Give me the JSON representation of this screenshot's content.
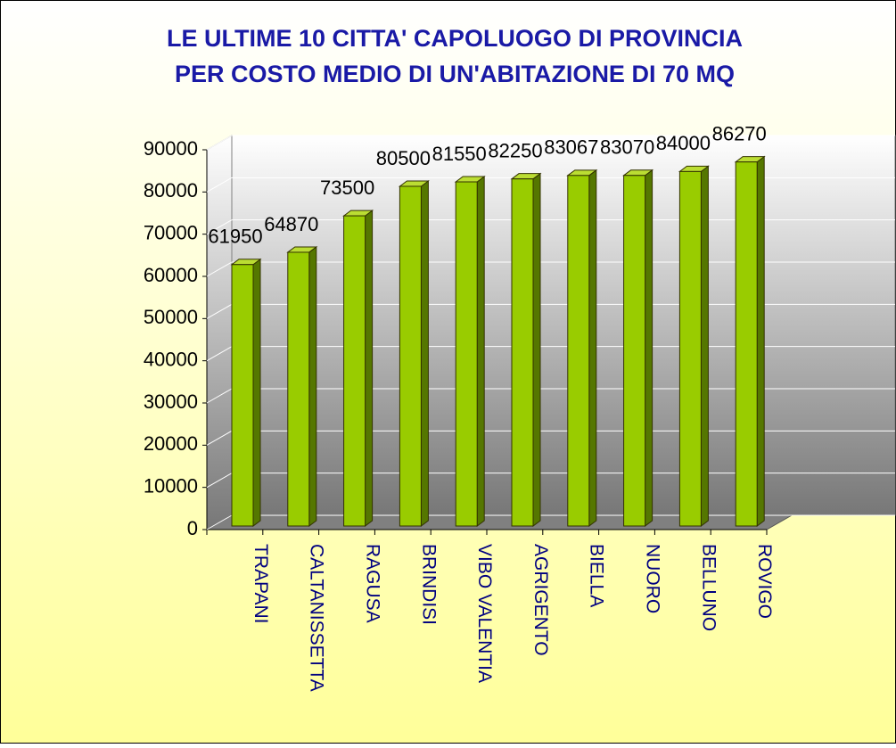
{
  "chart_data": {
    "type": "bar",
    "title": [
      "LE ULTIME 10 CITTA' CAPOLUOGO DI PROVINCIA",
      "PER COSTO MEDIO DI UN'ABITAZIONE DI 70 MQ"
    ],
    "categories": [
      "TRAPANI",
      "CALTANISSETTA",
      "RAGUSA",
      "BRINDISI",
      "VIBO VALENTIA",
      "AGRIGENTO",
      "BIELLA",
      "NUORO",
      "BELLUNO",
      "ROVIGO"
    ],
    "values": [
      61950,
      64870,
      73500,
      80500,
      81550,
      82250,
      83067,
      83070,
      84000,
      86270
    ],
    "color": "#99cc00",
    "ylim": [
      0,
      90000
    ],
    "yticks": [
      0,
      10000,
      20000,
      30000,
      40000,
      50000,
      60000,
      70000,
      80000,
      90000
    ],
    "grid": true
  }
}
